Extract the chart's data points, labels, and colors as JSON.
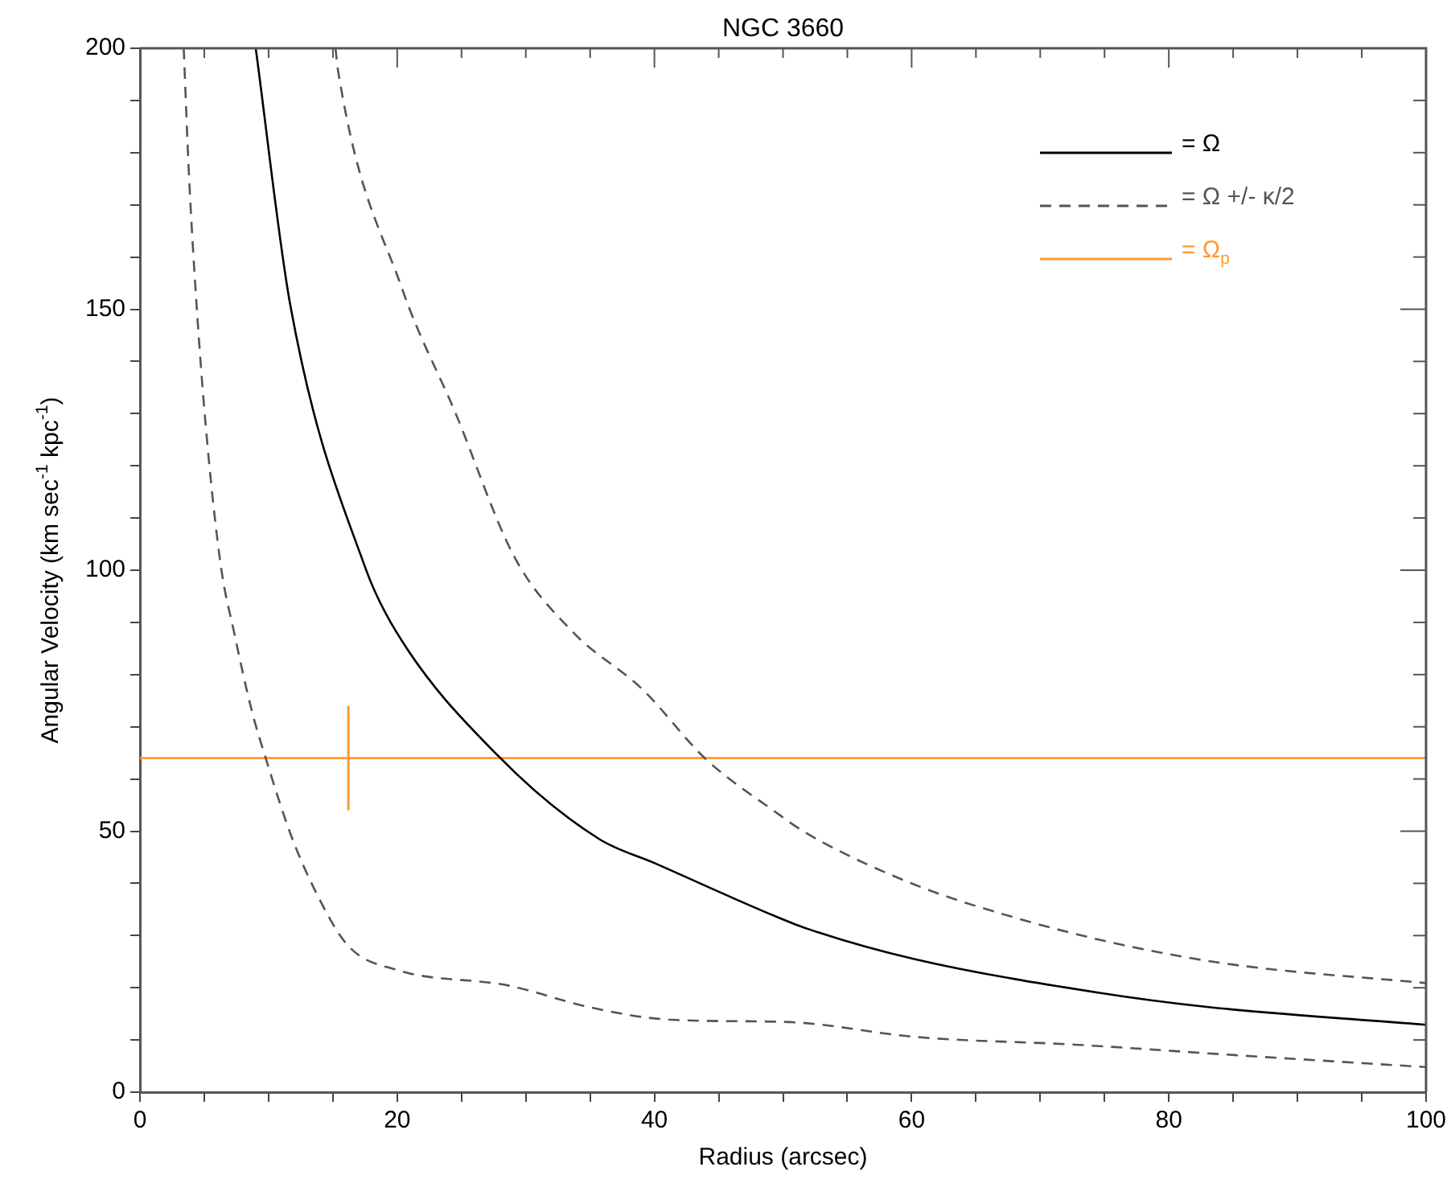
{
  "chart_data": {
    "type": "line",
    "title": "NGC 3660",
    "xlabel": "Radius (arcsec)",
    "ylabel": "Angular Velocity (km sec$^{-1}$ kpc$^{-1}$)",
    "xlim": [
      0,
      100
    ],
    "ylim": [
      0,
      200
    ],
    "xticks": [
      0,
      {
        "value": 5,
        "label": null
      },
      {
        "value": 10,
        "label": null
      },
      {
        "value": 15,
        "label": null
      },
      20,
      {
        "value": 25,
        "label": null
      },
      {
        "value": 30,
        "label": null
      },
      {
        "value": 35,
        "label": null
      },
      40,
      {
        "value": 45,
        "label": null
      },
      {
        "value": 50,
        "label": null
      },
      {
        "value": 55,
        "label": null
      },
      60,
      {
        "value": 65,
        "label": null
      },
      {
        "value": 70,
        "label": null
      },
      {
        "value": 75,
        "label": null
      },
      80,
      {
        "value": 85,
        "label": null
      },
      {
        "value": 90,
        "label": null
      },
      {
        "value": 95,
        "label": null
      },
      100
    ],
    "yticks": [
      0,
      {
        "value": 10,
        "label": null
      },
      {
        "value": 20,
        "label": null
      },
      {
        "value": 30,
        "label": null
      },
      {
        "value": 40,
        "label": null
      },
      50,
      {
        "value": 60,
        "label": null
      },
      {
        "value": 70,
        "label": null
      },
      {
        "value": 80,
        "label": null
      },
      {
        "value": 90,
        "label": null
      },
      100,
      {
        "value": 110,
        "label": null
      },
      {
        "value": 120,
        "label": null
      },
      {
        "value": 130,
        "label": null
      },
      {
        "value": 140,
        "label": null
      },
      150,
      {
        "value": 160,
        "label": null
      },
      {
        "value": 170,
        "label": null
      },
      {
        "value": 180,
        "label": null
      },
      {
        "value": 190,
        "label": null
      },
      200
    ],
    "legend": "top right",
    "marker": "none",
    "series": [
      {
        "name": "= Ω",
        "color": "#000000",
        "line_style": "solid",
        "x": [
          9.0,
          11.7,
          17.5,
          19.9,
          27.9,
          35.7,
          40,
          49.4,
          51.9,
          60.2,
          74.7,
          83.1,
          100
        ],
        "values": [
          200,
          150.6,
          100.6,
          88.3,
          64.3,
          48.5,
          43.9,
          33.7,
          31.3,
          25.5,
          19.0,
          16.3,
          12.9
        ]
      },
      {
        "name": "= Ω +/- κ/2",
        "color": "#555555",
        "line_style": "dashed",
        "x": [
          15.2,
          15.4,
          20.4,
          24.5,
          29.1,
          33.6,
          39.1,
          44.0,
          49.4,
          51.9,
          60.2,
          68.5,
          76.8,
          85.1,
          100
        ],
        "values": [
          200,
          195.7,
          153.8,
          130.3,
          102.6,
          88.3,
          77.1,
          63.8,
          53.7,
          49.5,
          39.8,
          33.1,
          28.0,
          24.4,
          20.9
        ]
      },
      {
        "color": "#555555",
        "line_style": "dashed",
        "x": [
          3.4,
          3.8,
          4.4,
          5.2,
          6.3,
          7.3,
          8.7,
          9.8,
          11.7,
          13.7,
          16.2,
          20.0,
          28.7,
          34.9,
          41.1,
          49.4,
          51.9,
          60.2,
          72.7,
          85.1,
          100
        ],
        "values": [
          200,
          176.2,
          150.8,
          125.2,
          100.6,
          88.3,
          73.0,
          63.8,
          49.5,
          38.2,
          28.0,
          23.4,
          20.4,
          16.3,
          13.9,
          13.5,
          13.2,
          10.6,
          9.1,
          7.1,
          4.8
        ]
      },
      {
        "name": "= Ω$_{p}$",
        "color": "#ff9933",
        "line_style": "solid",
        "x": [
          0,
          16.2,
          100
        ],
        "values": [
          64,
          64,
          64
        ],
        "errors": [
          null,
          [
            54,
            74
          ],
          null
        ]
      }
    ]
  }
}
